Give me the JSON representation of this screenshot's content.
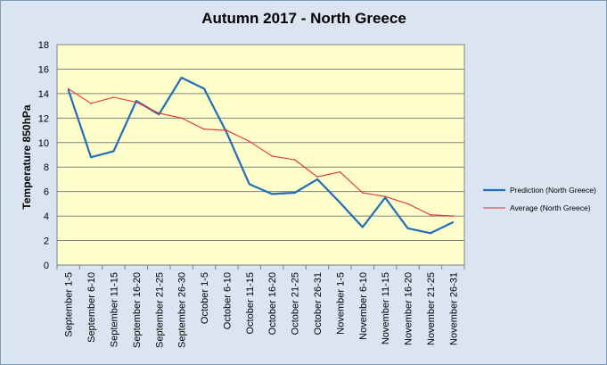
{
  "chart_data": {
    "type": "line",
    "title": "Autumn 2017 - North Greece",
    "ylabel": "Temperature 850hPa",
    "xlabel": "",
    "ylim": [
      0,
      18
    ],
    "yticks": [
      0,
      2,
      4,
      6,
      8,
      10,
      12,
      14,
      16,
      18
    ],
    "grid": true,
    "legend_position": "right",
    "categories": [
      "September 1-5",
      "September 6-10",
      "September 11-15",
      "September 16-20",
      "September 21-25",
      "September 26-30",
      "October 1-5",
      "October 6-10",
      "October 11-15",
      "October 16-20",
      "October 21-25",
      "October 26-31",
      "November 1-5",
      "November 6-10",
      "November 11-15",
      "November 16-20",
      "November 21-25",
      "November 26-31"
    ],
    "series": [
      {
        "name": "Prediction (North Greece)",
        "color": "#1f6eb8",
        "values": [
          14.3,
          8.8,
          9.3,
          13.4,
          12.3,
          15.3,
          14.4,
          10.8,
          6.6,
          5.8,
          5.9,
          7.0,
          5.1,
          3.1,
          5.5,
          3.0,
          2.6,
          3.5
        ]
      },
      {
        "name": "Average (North Greece)",
        "color": "#e83030",
        "values": [
          14.4,
          13.2,
          13.7,
          13.3,
          12.4,
          12.0,
          11.1,
          11.0,
          10.1,
          8.9,
          8.6,
          7.2,
          7.6,
          5.9,
          5.6,
          5.0,
          4.1,
          4.0
        ]
      }
    ],
    "plot_background": "#ffffcc",
    "frame_background": "#dbe5f1"
  }
}
